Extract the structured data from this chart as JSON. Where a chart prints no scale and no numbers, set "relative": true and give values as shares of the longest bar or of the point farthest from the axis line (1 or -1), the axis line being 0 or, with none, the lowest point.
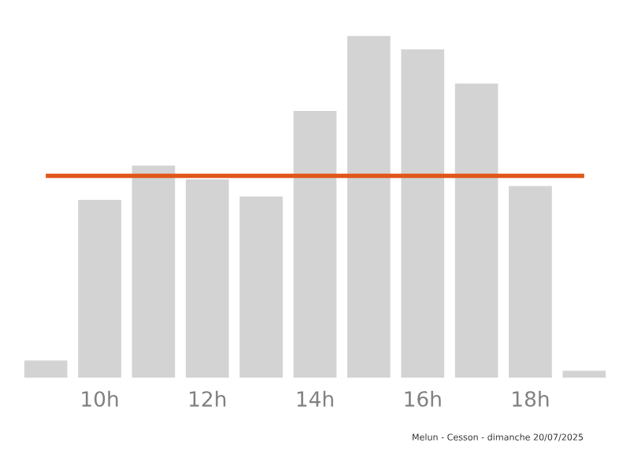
{
  "chart_data": {
    "type": "bar",
    "relative": true,
    "categories": [
      null,
      "10h",
      null,
      "12h",
      null,
      "14h",
      null,
      "16h",
      null,
      "18h",
      null
    ],
    "values": [
      0.05,
      0.52,
      0.62,
      0.58,
      0.53,
      0.78,
      1,
      0.96,
      0.86,
      0.56,
      0.02
    ],
    "color": "#d3d3d3",
    "ref_lines": [
      {
        "axis": "y",
        "value": 0.59,
        "color": "#e0561b"
      }
    ],
    "annotations": [
      "Melun - Cesson - dimanche 20/07/2025"
    ],
    "grid": false
  }
}
